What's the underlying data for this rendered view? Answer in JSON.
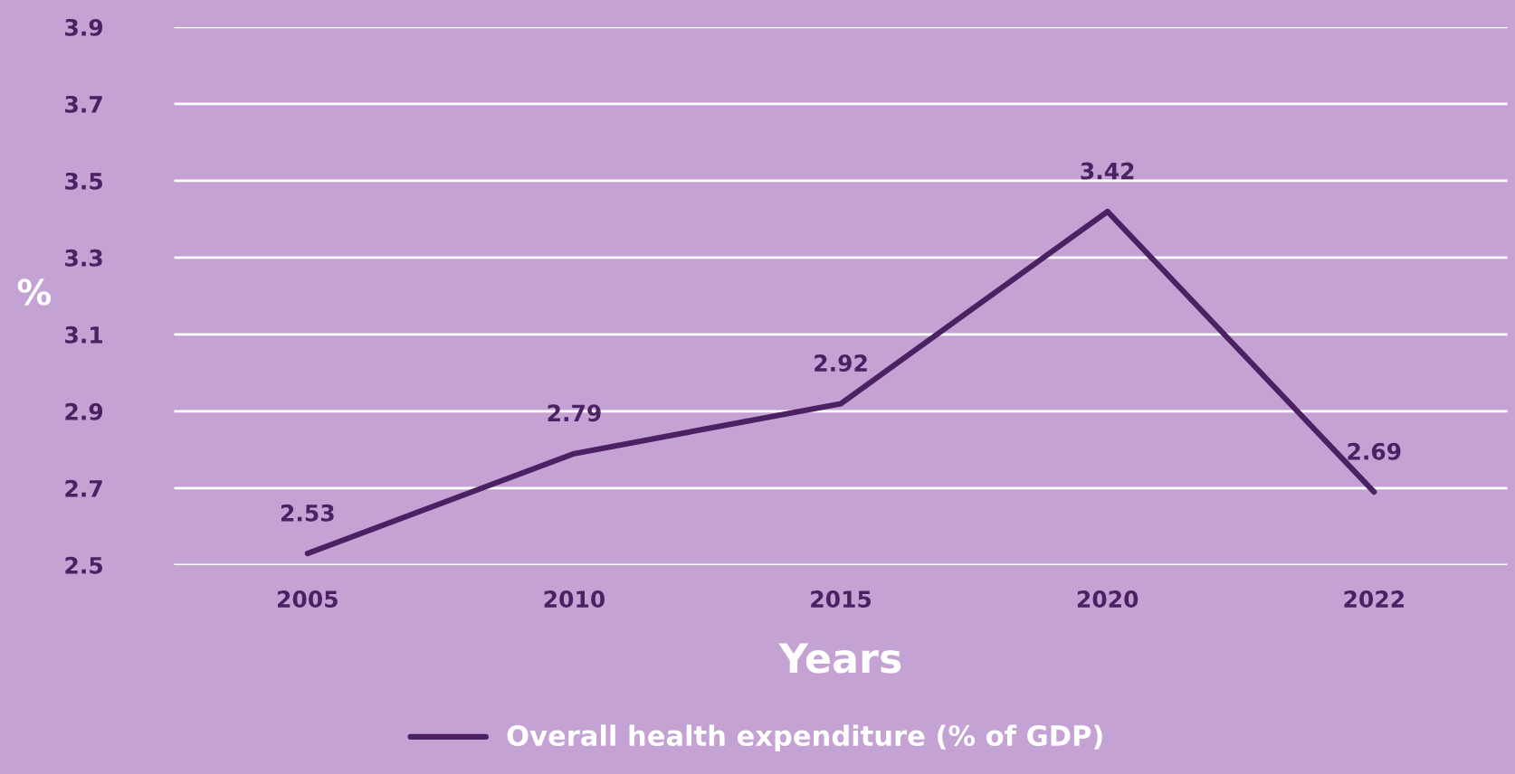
{
  "chart_data": {
    "type": "line",
    "categories": [
      "2005",
      "2010",
      "2015",
      "2020",
      "2022"
    ],
    "series": [
      {
        "name": "Overall health expenditure (% of GDP)",
        "color": "#4b2163",
        "values": [
          2.53,
          2.79,
          2.92,
          3.42,
          2.69
        ]
      }
    ],
    "xlabel": "Years",
    "ylabel": "%",
    "ylim": [
      2.5,
      3.9
    ],
    "yticks": [
      2.5,
      2.7,
      2.9,
      3.1,
      3.3,
      3.5,
      3.7,
      3.9
    ],
    "grid": "y",
    "legend": "bottom",
    "data_labels": true,
    "marker": "none",
    "line_style": "solid"
  }
}
